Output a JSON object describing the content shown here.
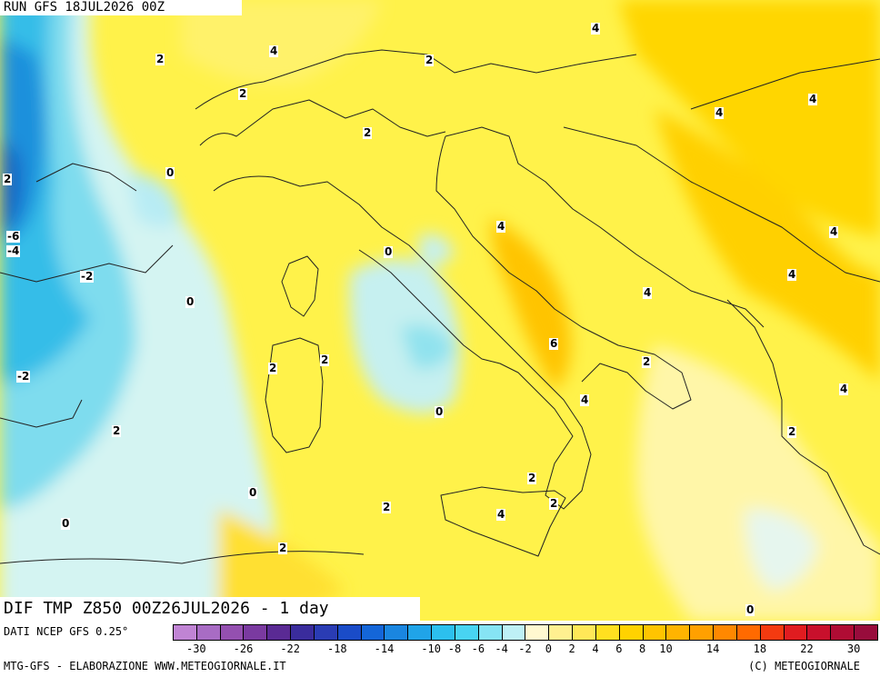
{
  "header": {
    "run": "RUN GFS 18JUL2026 00Z"
  },
  "title": {
    "text": "DIF TMP Z850 00Z26JUL2026 - 1 day"
  },
  "source": {
    "text": "DATI NCEP GFS 0.25°"
  },
  "footer": {
    "left": "MTG-GFS - ELABORAZIONE WWW.METEOGIORNALE.IT",
    "right": "(C) METEOGIORNALE"
  },
  "legend": {
    "colors": [
      "#c084d4",
      "#a86cc4",
      "#9450b0",
      "#7a3aa0",
      "#5a2a94",
      "#3a2c9c",
      "#2a3cb4",
      "#1a4cc8",
      "#1466d8",
      "#1a86e0",
      "#20a4e8",
      "#2cc0ee",
      "#48d4f2",
      "#86e4f4",
      "#bef0f6",
      "#fff8d0",
      "#fff090",
      "#ffe858",
      "#ffe020",
      "#ffd200",
      "#ffc400",
      "#ffb400",
      "#ffa000",
      "#ff8800",
      "#ff6a00",
      "#f43a10",
      "#e01c20",
      "#c8102c",
      "#b00c34",
      "#980c3c"
    ],
    "ticks": [
      "-30",
      "-26",
      "-22",
      "-18",
      "-14",
      "-10",
      "-8",
      "-6",
      "-4",
      "-2",
      "0",
      "2",
      "4",
      "6",
      "8",
      "10",
      "14",
      "18",
      "22",
      "30"
    ]
  },
  "iso_labels": [
    "4",
    "4",
    "2",
    "2",
    "2",
    "4",
    "2",
    "4",
    "0",
    "2",
    "-6",
    "-4",
    "4",
    "0",
    "-2",
    "4",
    "4",
    "0",
    "4",
    "6",
    "2",
    "2",
    "2",
    "-2",
    "4",
    "0",
    "2",
    "2",
    "2",
    "0",
    "2",
    "2",
    "4",
    "0",
    "2",
    "4",
    "0"
  ]
}
